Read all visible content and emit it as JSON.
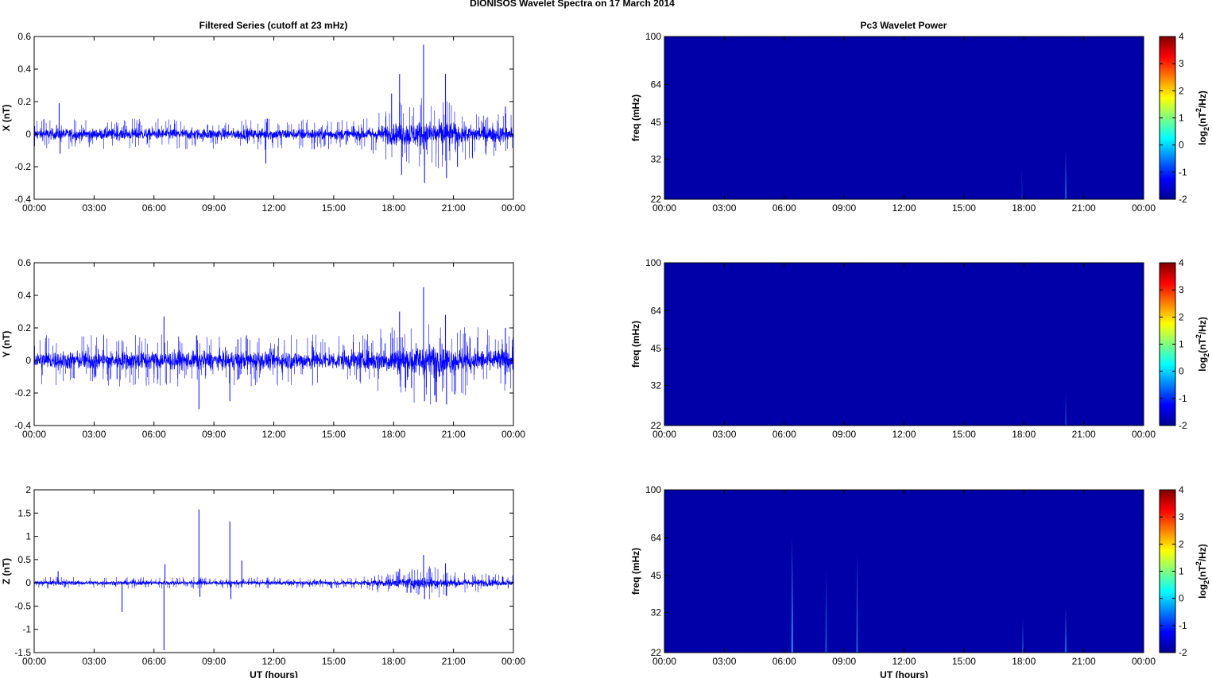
{
  "figure": {
    "title": "DIONISOS Wavelet Spectra on 17 March     2014",
    "left_title": "Filtered Series (cutoff at 23 mHz)",
    "right_title": "Pc3 Wavelet Power",
    "xlabel": "UT (hours)"
  },
  "chart_data": [
    {
      "type": "line",
      "title": "Filtered Series (cutoff at 23 mHz)",
      "ylabel": "X (nT)",
      "xlabel": "",
      "x_ticks": [
        "00:00",
        "03:00",
        "06:00",
        "09:00",
        "12:00",
        "15:00",
        "18:00",
        "21:00",
        "00:00"
      ],
      "xlim_hours": [
        0,
        24
      ],
      "ylim": [
        -0.4,
        0.6
      ],
      "y_ticks": [
        "0.6",
        "0.4",
        "0.2",
        "0",
        "-0.2",
        "-0.4"
      ],
      "y_tick_values": [
        0.6,
        0.4,
        0.2,
        0,
        -0.2,
        -0.4
      ],
      "line_color": "#0000ff",
      "noise_envelope": [
        [
          0,
          0.03
        ],
        [
          16.5,
          0.03
        ],
        [
          17.5,
          0.05
        ],
        [
          19,
          0.07
        ],
        [
          20.5,
          0.07
        ],
        [
          21.5,
          0.05
        ],
        [
          24,
          0.04
        ]
      ],
      "spikes": [
        {
          "t": 1.25,
          "y": 0.19
        },
        {
          "t": 1.3,
          "y": -0.12
        },
        {
          "t": 11.6,
          "y": -0.18
        },
        {
          "t": 18.3,
          "y": 0.37
        },
        {
          "t": 18.4,
          "y": -0.25
        },
        {
          "t": 19.5,
          "y": 0.55
        },
        {
          "t": 19.55,
          "y": -0.3
        },
        {
          "t": 20.6,
          "y": 0.37
        },
        {
          "t": 20.65,
          "y": -0.27
        },
        {
          "t": 17.9,
          "y": 0.25
        },
        {
          "t": 21.2,
          "y": -0.2
        },
        {
          "t": 23.6,
          "y": 0.17
        }
      ]
    },
    {
      "type": "line",
      "ylabel": "Y (nT)",
      "xlabel": "",
      "x_ticks": [
        "00:00",
        "03:00",
        "06:00",
        "09:00",
        "12:00",
        "15:00",
        "18:00",
        "21:00",
        "00:00"
      ],
      "xlim_hours": [
        0,
        24
      ],
      "ylim": [
        -0.4,
        0.6
      ],
      "y_ticks": [
        "0.6",
        "0.4",
        "0.2",
        "0",
        "-0.2",
        "-0.4"
      ],
      "y_tick_values": [
        0.6,
        0.4,
        0.2,
        0,
        -0.2,
        -0.4
      ],
      "line_color": "#0000ff",
      "noise_envelope": [
        [
          0,
          0.05
        ],
        [
          16.5,
          0.05
        ],
        [
          18,
          0.07
        ],
        [
          19.5,
          0.09
        ],
        [
          21,
          0.07
        ],
        [
          24,
          0.06
        ]
      ],
      "spikes": [
        {
          "t": 6.5,
          "y": 0.27
        },
        {
          "t": 8.25,
          "y": -0.3
        },
        {
          "t": 9.8,
          "y": -0.25
        },
        {
          "t": 10.2,
          "y": 0.13
        },
        {
          "t": 4.3,
          "y": -0.12
        },
        {
          "t": 18.3,
          "y": 0.3
        },
        {
          "t": 19.5,
          "y": 0.45
        },
        {
          "t": 19.55,
          "y": -0.25
        },
        {
          "t": 20.6,
          "y": 0.28
        },
        {
          "t": 20.65,
          "y": -0.27
        },
        {
          "t": 18.9,
          "y": -0.17
        },
        {
          "t": 23.6,
          "y": 0.2
        }
      ]
    },
    {
      "type": "line",
      "ylabel": "Z (nT)",
      "xlabel": "UT (hours)",
      "x_ticks": [
        "00:00",
        "03:00",
        "06:00",
        "09:00",
        "12:00",
        "15:00",
        "18:00",
        "21:00",
        "00:00"
      ],
      "xlim_hours": [
        0,
        24
      ],
      "ylim": [
        -1.5,
        2
      ],
      "y_ticks": [
        "2",
        "1.5",
        "1",
        "0.5",
        "0",
        "-0.5",
        "-1",
        "-1.5"
      ],
      "y_tick_values": [
        2,
        1.5,
        1,
        0.5,
        0,
        -0.5,
        -1,
        -1.5
      ],
      "line_color": "#0000ff",
      "noise_envelope": [
        [
          0,
          0.04
        ],
        [
          16,
          0.04
        ],
        [
          18,
          0.08
        ],
        [
          19.5,
          0.12
        ],
        [
          21,
          0.08
        ],
        [
          24,
          0.05
        ]
      ],
      "spikes": [
        {
          "t": 4.4,
          "y": -0.63
        },
        {
          "t": 6.5,
          "y": -1.45
        },
        {
          "t": 6.55,
          "y": 0.4
        },
        {
          "t": 8.25,
          "y": 1.58
        },
        {
          "t": 8.3,
          "y": -0.3
        },
        {
          "t": 9.8,
          "y": 1.32
        },
        {
          "t": 9.85,
          "y": -0.35
        },
        {
          "t": 10.4,
          "y": 0.48
        },
        {
          "t": 1.2,
          "y": 0.25
        },
        {
          "t": 18.3,
          "y": 0.3
        },
        {
          "t": 19.5,
          "y": 0.6
        },
        {
          "t": 19.55,
          "y": -0.35
        },
        {
          "t": 20.6,
          "y": 0.42
        },
        {
          "t": 20.65,
          "y": -0.28
        }
      ]
    },
    {
      "type": "heatmap",
      "title": "Pc3 Wavelet Power",
      "ylabel": "freq (mHz)",
      "xlabel": "",
      "x_ticks": [
        "00:00",
        "03:00",
        "06:00",
        "09:00",
        "12:00",
        "15:00",
        "18:00",
        "21:00",
        "00:00"
      ],
      "xlim_hours": [
        0,
        24
      ],
      "y_scale": "log",
      "ylim_mhz": [
        22,
        100
      ],
      "y_ticks": [
        "100",
        "64",
        "45",
        "32",
        "22"
      ],
      "y_tick_values": [
        100,
        64,
        45,
        32,
        22
      ],
      "colorbar": {
        "label": "log2(nT²/Hz)",
        "ticks": [
          "4",
          "3",
          "2",
          "1",
          "0",
          "-1",
          "-2"
        ],
        "tick_values": [
          4,
          3,
          2,
          1,
          0,
          -1,
          -2
        ],
        "range": [
          -2,
          4
        ],
        "colormap": "jet"
      },
      "background_color": "#0000a8",
      "streaks": [
        {
          "t": 17.9,
          "f_top_mhz": 30,
          "color": "#0a1cb0"
        },
        {
          "t": 20.1,
          "f_top_mhz": 35,
          "color": "#1c50d0"
        }
      ]
    },
    {
      "type": "heatmap",
      "ylabel": "freq (mHz)",
      "xlabel": "",
      "x_ticks": [
        "00:00",
        "03:00",
        "06:00",
        "09:00",
        "12:00",
        "15:00",
        "18:00",
        "21:00",
        "00:00"
      ],
      "xlim_hours": [
        0,
        24
      ],
      "y_scale": "log",
      "ylim_mhz": [
        22,
        100
      ],
      "y_ticks": [
        "100",
        "64",
        "45",
        "32",
        "22"
      ],
      "y_tick_values": [
        100,
        64,
        45,
        32,
        22
      ],
      "colorbar": {
        "label": "log2(nT²/Hz)",
        "ticks": [
          "4",
          "3",
          "2",
          "1",
          "0",
          "-1",
          "-2"
        ],
        "tick_values": [
          4,
          3,
          2,
          1,
          0,
          -1,
          -2
        ],
        "range": [
          -2,
          4
        ],
        "colormap": "jet"
      },
      "background_color": "#0000a8",
      "streaks": [
        {
          "t": 20.1,
          "f_top_mhz": 30,
          "color": "#1030c0"
        }
      ]
    },
    {
      "type": "heatmap",
      "ylabel": "freq (mHz)",
      "xlabel": "UT (hours)",
      "x_ticks": [
        "00:00",
        "03:00",
        "06:00",
        "09:00",
        "12:00",
        "15:00",
        "18:00",
        "21:00",
        "00:00"
      ],
      "xlim_hours": [
        0,
        24
      ],
      "y_scale": "log",
      "ylim_mhz": [
        22,
        100
      ],
      "y_ticks": [
        "100",
        "64",
        "45",
        "32",
        "22"
      ],
      "y_tick_values": [
        100,
        64,
        45,
        32,
        22
      ],
      "colorbar": {
        "label": "log2(nT²/Hz)",
        "ticks": [
          "4",
          "3",
          "2",
          "1",
          "0",
          "-1",
          "-2"
        ],
        "tick_values": [
          4,
          3,
          2,
          1,
          0,
          -1,
          -2
        ],
        "range": [
          -2,
          4
        ],
        "colormap": "jet"
      },
      "background_color": "#0000a8",
      "streaks": [
        {
          "t": 6.4,
          "f_top_mhz": 66,
          "color": "#2c7ce8"
        },
        {
          "t": 8.1,
          "f_top_mhz": 48,
          "color": "#1a48c8"
        },
        {
          "t": 9.65,
          "f_top_mhz": 58,
          "color": "#1c50d0"
        },
        {
          "t": 17.95,
          "f_top_mhz": 31,
          "color": "#1638c0"
        },
        {
          "t": 20.1,
          "f_top_mhz": 34,
          "color": "#1e5cd8"
        }
      ]
    }
  ]
}
